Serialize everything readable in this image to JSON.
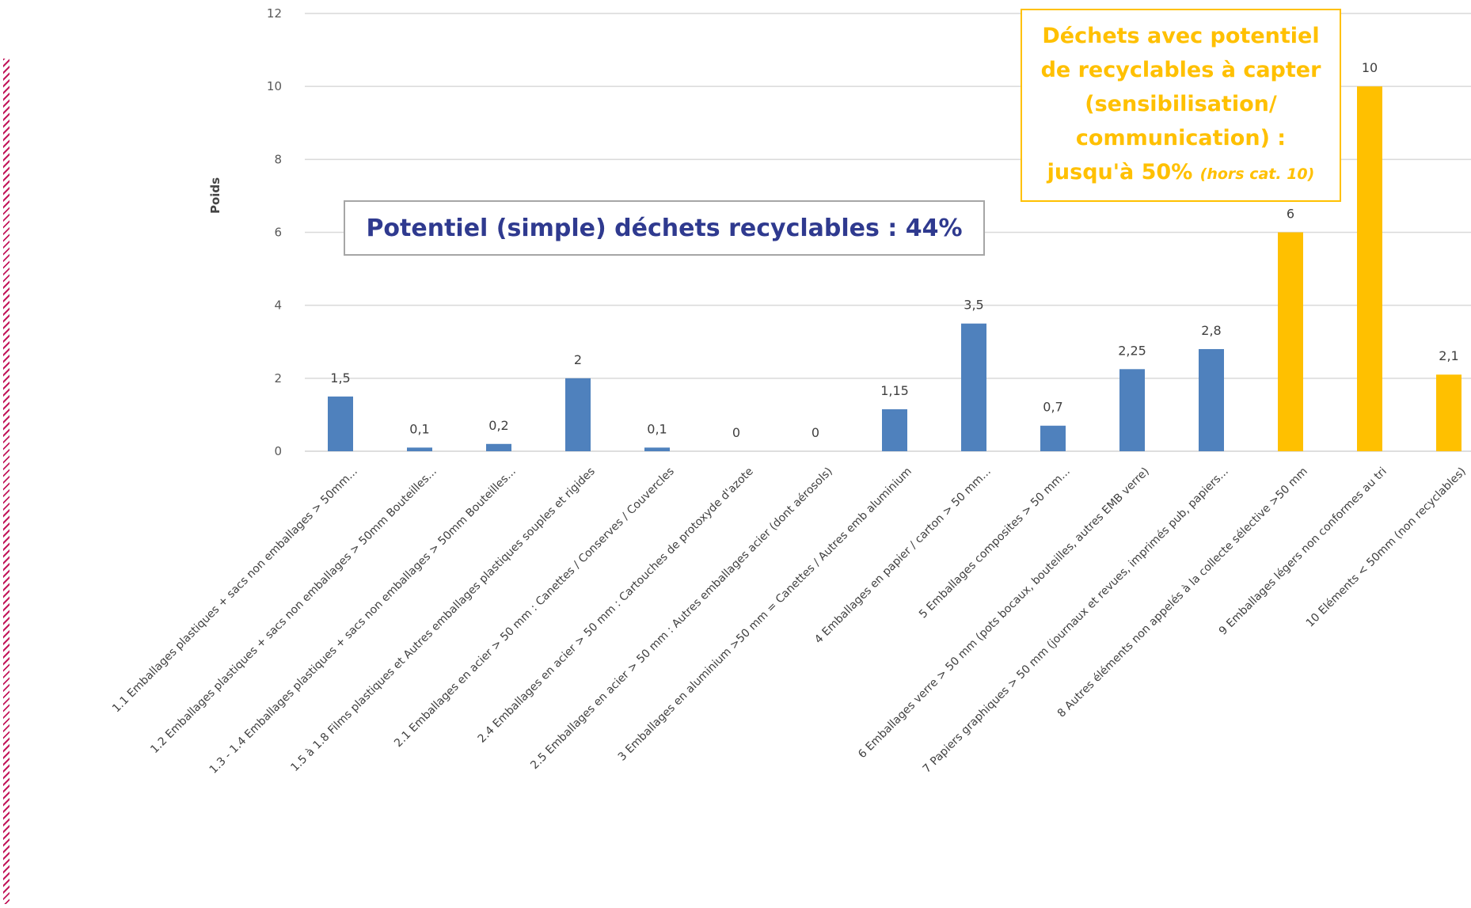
{
  "chart_data": {
    "type": "bar",
    "ylabel": "Poids",
    "ylim": [
      0,
      12
    ],
    "yticks": [
      "0",
      "2",
      "4",
      "6",
      "8",
      "10",
      "12"
    ],
    "grid": true,
    "categories": [
      "1.1 Emballages plastiques + sacs non emballages > 50mm...",
      "1.2 Emballages plastiques + sacs non emballages > 50mm Bouteilles...",
      "1.3 - 1.4 Emballages plastiques + sacs non emballages > 50mm Bouteilles...",
      "1.5 à 1.8 Films plastiques et Autres emballages plastiques souples et rigides",
      "2.1 Emballages en acier > 50 mm : Canettes / Conserves / Couvercles",
      "2.4 Emballages en acier > 50 mm : Cartouches de protoxyde d'azote",
      "2.5 Emballages en acier > 50 mm : Autres emballages acier (dont aérosols)",
      "3 Emballages en aluminium >50 mm = Canettes / Autres emb aluminium",
      "4 Emballages en papier / carton > 50 mm...",
      "5 Emballages composites > 50 mm...",
      "6 Emballages verre > 50 mm (pots bocaux, bouteilles, autres EMB verre)",
      "7 Papiers graphiques > 50 mm (journaux et revues, imprimés pub, papiers...",
      "8 Autres éléments non appelés à la collecte sélective >50 mm",
      "9 Emballages légers non conformes au tri",
      "10 Eléments < 50mm (non recyclables)"
    ],
    "values": [
      1.5,
      0.1,
      0.2,
      2,
      0.1,
      0,
      0,
      1.15,
      3.5,
      0.7,
      2.25,
      2.8,
      6,
      10,
      2.1
    ],
    "value_labels": [
      "1,5",
      "0,1",
      "0,2",
      "2",
      "0,1",
      "0",
      "0",
      "1,15",
      "3,5",
      "0,7",
      "2,25",
      "2,8",
      "6",
      "10",
      "2,1"
    ],
    "colors": [
      "#4f81bd",
      "#4f81bd",
      "#4f81bd",
      "#4f81bd",
      "#4f81bd",
      "#4f81bd",
      "#4f81bd",
      "#4f81bd",
      "#4f81bd",
      "#4f81bd",
      "#4f81bd",
      "#4f81bd",
      "#ffc000",
      "#ffc000",
      "#ffc000"
    ]
  },
  "annotations": {
    "recyclable_box": "Potentiel (simple) déchets recyclables : 44%",
    "potential_box": {
      "lines": [
        "Déchets avec potentiel",
        "de recyclables à capter",
        "(sensibilisation/",
        "communication) :"
      ],
      "last_line": "jusqu'à 50%",
      "note": "(hors cat. 10)"
    }
  }
}
